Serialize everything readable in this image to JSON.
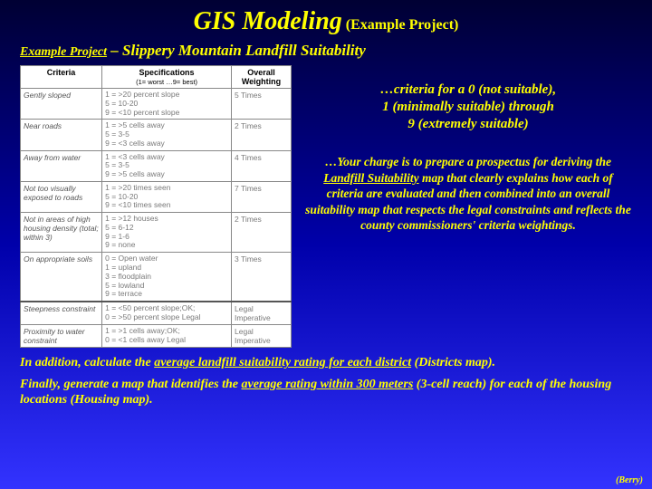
{
  "title": {
    "main": "GIS Modeling",
    "sub": "(Example Project)"
  },
  "subtitle": {
    "lead": "Example Project",
    "dash": " – ",
    "rest": "Slippery Mountain Landfill Suitability"
  },
  "table": {
    "headers": {
      "c1": "Criteria",
      "c2": "Specifications",
      "c2sub": "(1= worst …9= best)",
      "c3": "Overall Weighting"
    },
    "rows": [
      {
        "crit": "Gently sloped",
        "spec": "1 = >20 percent slope\n5 = 10-20\n9 = <10 percent slope",
        "wt": "5 Times"
      },
      {
        "crit": "Near roads",
        "spec": "1 = >5 cells away\n5 = 3-5\n9 = <3 cells away",
        "wt": "2 Times"
      },
      {
        "crit": "Away from water",
        "spec": "1 = <3 cells away\n5 = 3-5\n9 = >5 cells away",
        "wt": "4 Times"
      },
      {
        "crit": "Not too visually exposed to roads",
        "spec": "1 = >20 times seen\n5 = 10-20\n9 = <10 times seen",
        "wt": "7 Times"
      },
      {
        "crit": "Not in areas of high housing density (total; within 3)",
        "spec": "1 = >12 houses\n5 = 6-12\n9 = 1-6\n9 = none",
        "wt": "2 Times"
      },
      {
        "crit": "On appropriate soils",
        "spec": "0 = Open water\n1 = upland\n3 = floodplain\n5 = lowland\n9 = terrace",
        "wt": "3 Times"
      },
      {
        "crit": "Steepness constraint",
        "spec": "1 = <50 percent slope;OK;\n0 = >50 percent slope Legal",
        "wt": "Legal Imperative",
        "sep": true
      },
      {
        "crit": "Proximity to water constraint",
        "spec": "1 = >1 cells away;OK;\n0 = <1 cells away Legal",
        "wt": "Legal Imperative"
      }
    ]
  },
  "note1": {
    "l1": "…criteria for a 0 (not suitable),",
    "l2": "1 (minimally suitable) through",
    "l3": "9 (extremely suitable)"
  },
  "note2": {
    "a": "…Your charge is to prepare a prospectus for deriving the ",
    "u1": "Landfill Suitability",
    "b": " map that clearly explains how each of criteria are evaluated and then combined into an overall suitability map that respects the legal constraints and reflects the county commissioners' criteria weightings."
  },
  "bottom": {
    "p1a": "In addition, calculate the ",
    "p1u": "average landfill suitability rating for each district",
    "p1b": " (Districts map).",
    "p2a": "Finally, generate a map that identifies the ",
    "p2u": "average rating within 300 meters",
    "p2b": " (3-cell reach) for each of the housing locations (Housing map)."
  },
  "credit": "(Berry)"
}
